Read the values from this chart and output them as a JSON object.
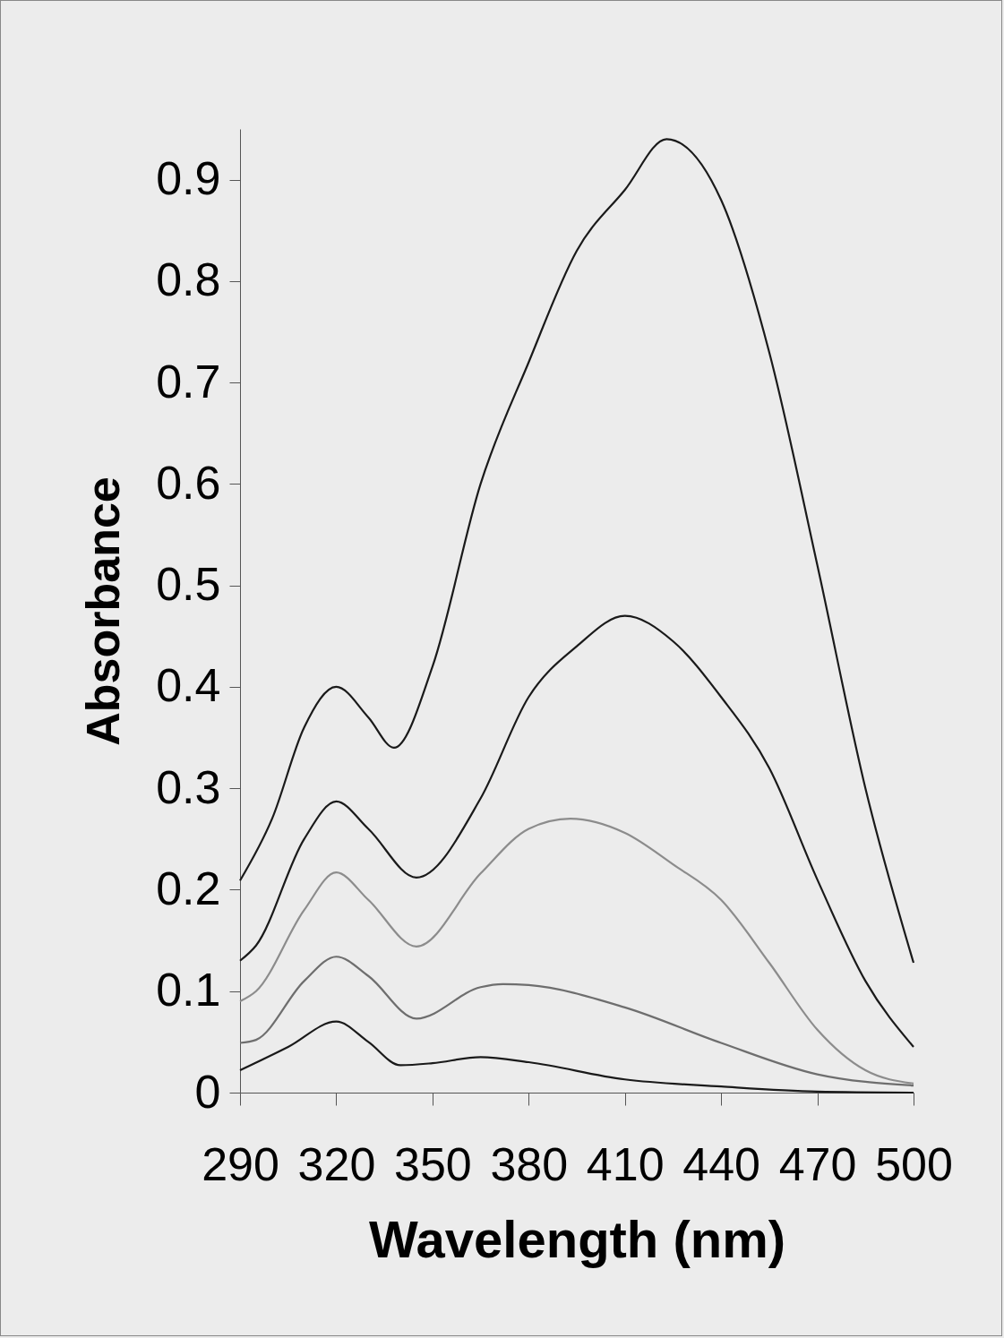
{
  "chart_data": {
    "type": "line",
    "xlabel": "Wavelength (nm)",
    "ylabel": "Absorbance",
    "xlim": [
      290,
      500
    ],
    "xticks": [
      290,
      320,
      350,
      380,
      410,
      440,
      470,
      500
    ],
    "ylim": [
      0,
      0.95
    ],
    "yticks": [
      0,
      0.1,
      0.2,
      0.3,
      0.4,
      0.5,
      0.6,
      0.7,
      0.8,
      0.9
    ],
    "grid": false,
    "legend": false,
    "marker": "none",
    "line_style": "solid",
    "series": [
      {
        "color": "#1a1a1a",
        "x": [
          290,
          300,
          310,
          320,
          330,
          338,
          350,
          365,
          380,
          395,
          410,
          423,
          440,
          455,
          470,
          485,
          500
        ],
        "values": [
          0.209,
          0.27,
          0.36,
          0.4,
          0.37,
          0.34,
          0.42,
          0.6,
          0.72,
          0.83,
          0.89,
          0.94,
          0.88,
          0.73,
          0.52,
          0.3,
          0.128
        ]
      },
      {
        "color": "#1a1a1a",
        "x": [
          290,
          295,
          310,
          320,
          330,
          345,
          365,
          380,
          395,
          410,
          425,
          440,
          455,
          470,
          485,
          500
        ],
        "values": [
          0.13,
          0.145,
          0.25,
          0.287,
          0.26,
          0.212,
          0.29,
          0.39,
          0.44,
          0.47,
          0.445,
          0.39,
          0.32,
          0.21,
          0.11,
          0.045
        ]
      },
      {
        "color": "#8c8c8c",
        "x": [
          290,
          295,
          310,
          320,
          330,
          345,
          365,
          380,
          393,
          410,
          425,
          440,
          455,
          470,
          485,
          500
        ],
        "values": [
          0.09,
          0.1,
          0.18,
          0.217,
          0.19,
          0.144,
          0.216,
          0.26,
          0.27,
          0.256,
          0.225,
          0.19,
          0.128,
          0.062,
          0.022,
          0.009
        ]
      },
      {
        "color": "#6e6e6e",
        "x": [
          290,
          295,
          310,
          320,
          330,
          345,
          365,
          372,
          380,
          410,
          440,
          470,
          500
        ],
        "values": [
          0.049,
          0.052,
          0.11,
          0.134,
          0.115,
          0.073,
          0.104,
          0.107,
          0.106,
          0.084,
          0.049,
          0.018,
          0.007
        ]
      },
      {
        "color": "#1a1a1a",
        "x": [
          290,
          305,
          320,
          330,
          340,
          350,
          365,
          380,
          410,
          440,
          470,
          500
        ],
        "values": [
          0.022,
          0.045,
          0.07,
          0.05,
          0.027,
          0.029,
          0.035,
          0.03,
          0.013,
          0.006,
          0.001,
          0.0
        ]
      }
    ]
  }
}
